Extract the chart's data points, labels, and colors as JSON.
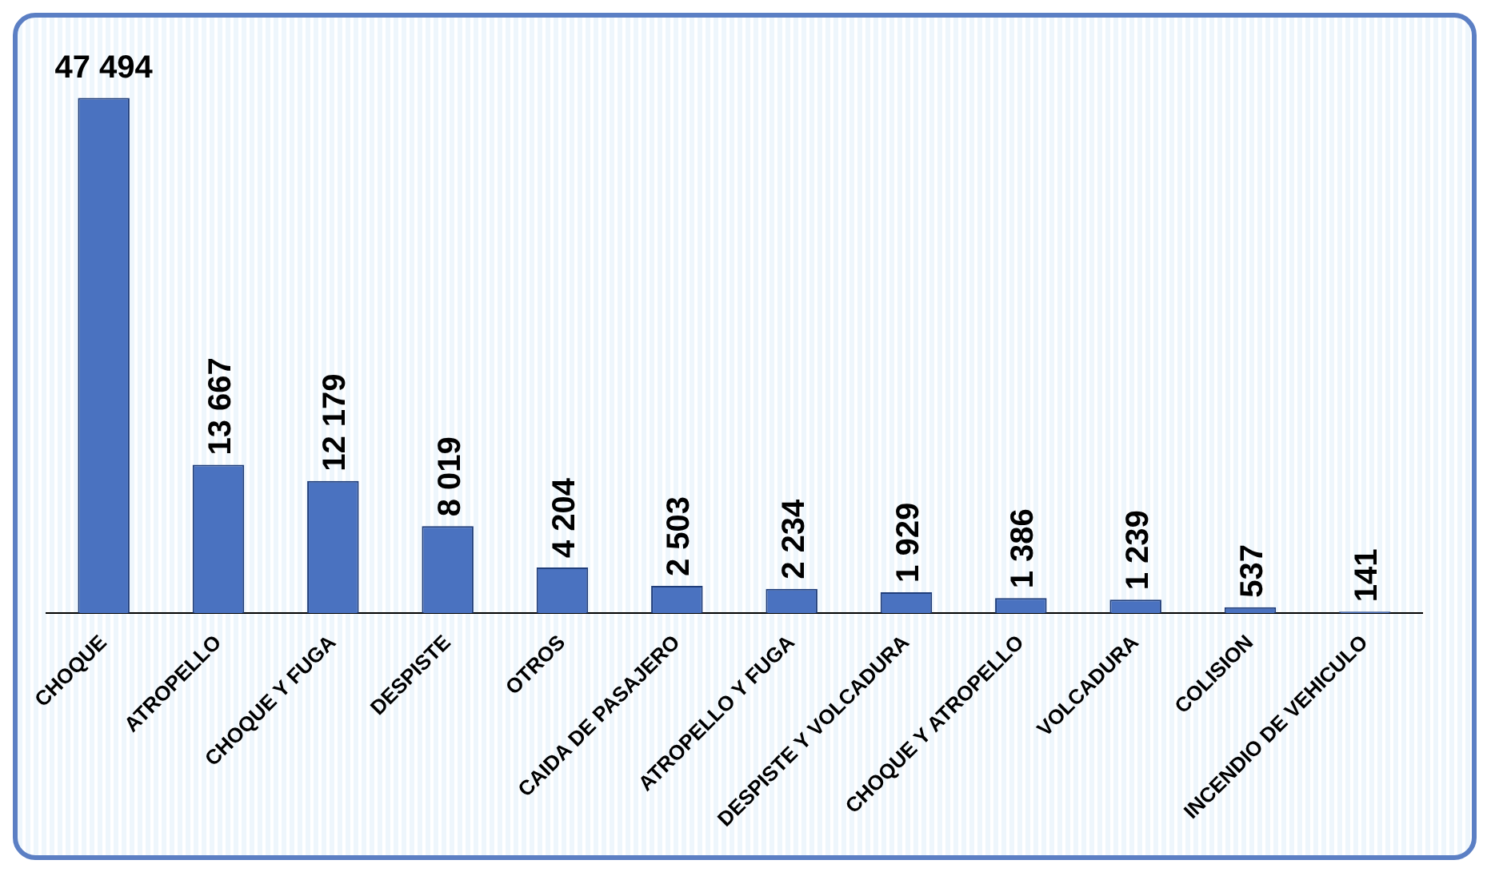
{
  "chart_data": {
    "type": "bar",
    "categories": [
      "CHOQUE",
      "ATROPELLO",
      "CHOQUE Y FUGA",
      "DESPISTE",
      "OTROS",
      "CAIDA DE PASAJERO",
      "ATROPELLO Y FUGA",
      "DESPISTE Y VOLCADURA",
      "CHOQUE Y ATROPELLO",
      "VOLCADURA",
      "COLISION",
      "INCENDIO DE VEHICULO"
    ],
    "values": [
      47494,
      13667,
      12179,
      8019,
      4204,
      2503,
      2234,
      1929,
      1386,
      1239,
      537,
      141
    ],
    "value_labels": [
      "47 494",
      "13 667",
      "12 179",
      "8 019",
      "4 204",
      "2 503",
      "2 234",
      "1 929",
      "1 386",
      "1 239",
      "537",
      "141"
    ],
    "color": "#4a72c0",
    "grid": false,
    "legend": false
  }
}
